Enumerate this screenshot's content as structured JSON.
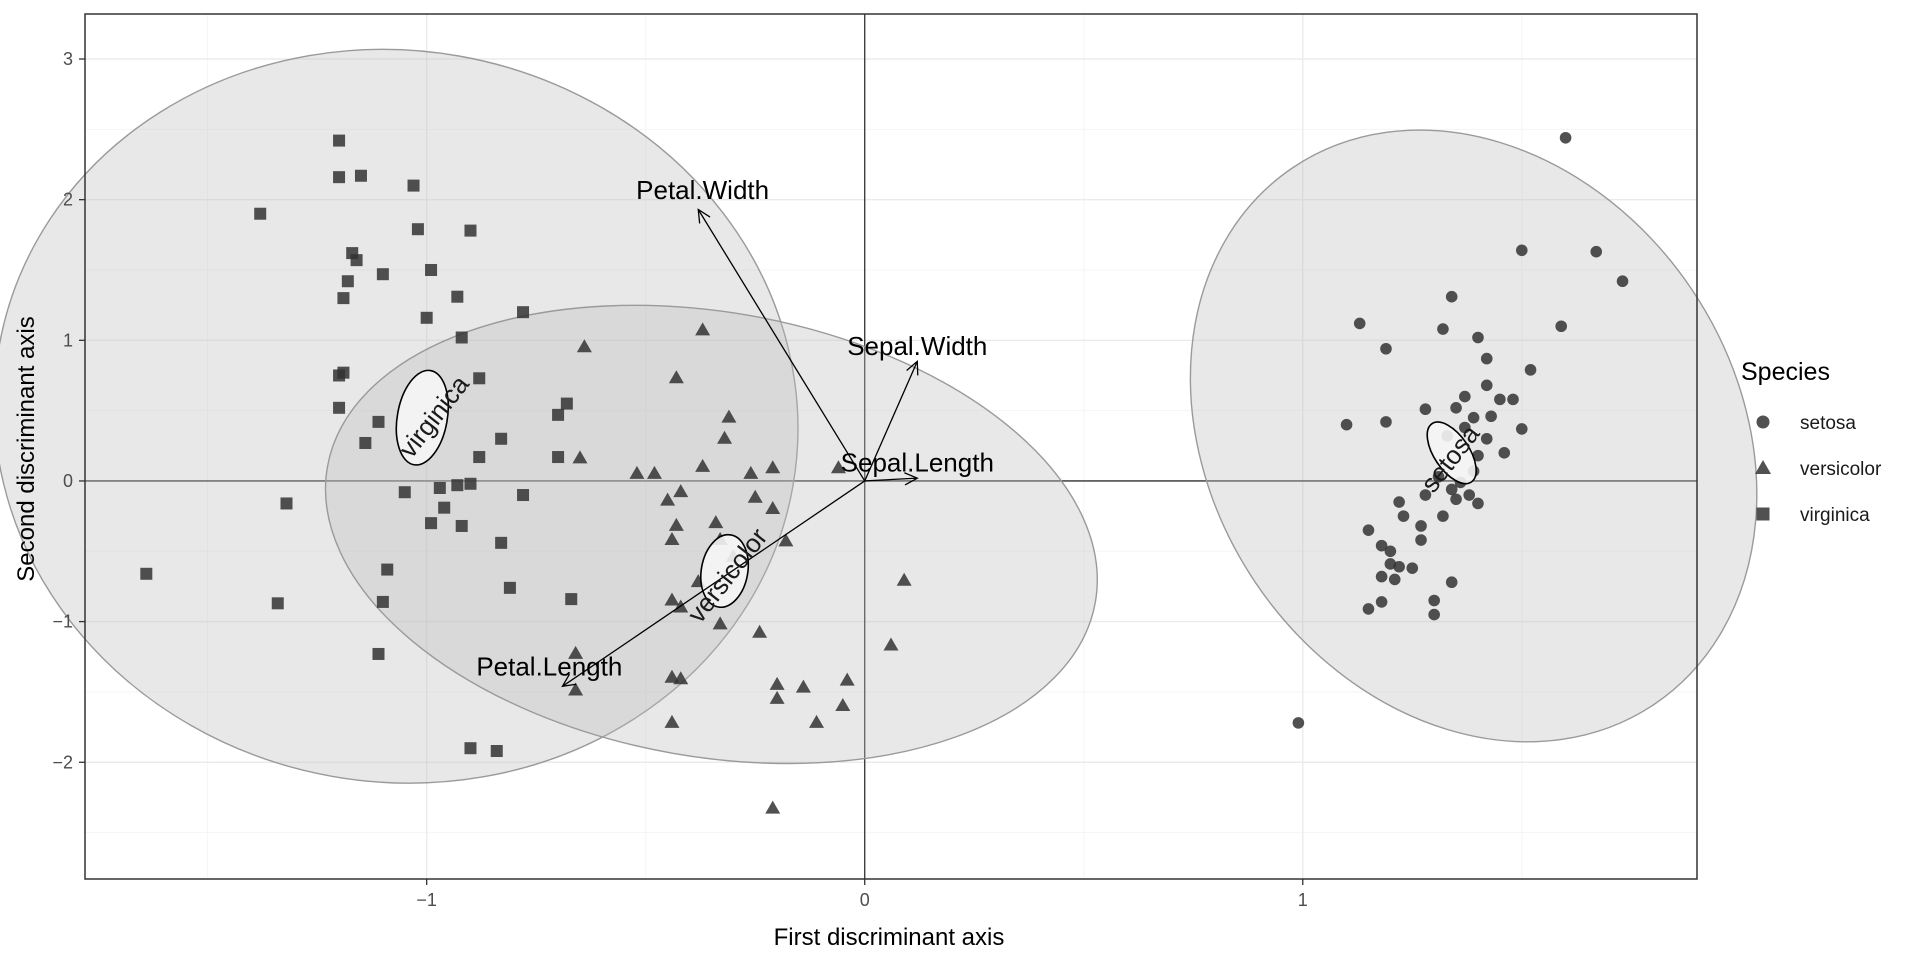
{
  "chart_data": {
    "type": "scatter",
    "xlabel": "First discriminant axis",
    "ylabel": "Second discriminant axis",
    "xlim": [
      -1.78,
      1.9
    ],
    "ylim": [
      -2.83,
      3.32
    ],
    "x_ticks": [
      -1,
      0,
      1
    ],
    "y_ticks": [
      -2,
      -1,
      0,
      1,
      2,
      3
    ],
    "grid": true,
    "legend": {
      "title": "Species",
      "position": "right"
    },
    "series": [
      {
        "name": "setosa",
        "marker": "circle",
        "points": [
          [
            1.6,
            2.44
          ],
          [
            1.5,
            1.64
          ],
          [
            1.67,
            1.63
          ],
          [
            1.73,
            1.42
          ],
          [
            1.59,
            1.1
          ],
          [
            1.13,
            1.12
          ],
          [
            1.34,
            1.31
          ],
          [
            1.32,
            1.08
          ],
          [
            1.4,
            1.02
          ],
          [
            1.19,
            0.94
          ],
          [
            1.42,
            0.87
          ],
          [
            1.52,
            0.79
          ],
          [
            1.1,
            0.4
          ],
          [
            1.19,
            0.42
          ],
          [
            1.42,
            0.68
          ],
          [
            1.37,
            0.6
          ],
          [
            1.45,
            0.58
          ],
          [
            1.48,
            0.58
          ],
          [
            1.35,
            0.52
          ],
          [
            1.28,
            0.51
          ],
          [
            1.43,
            0.46
          ],
          [
            1.39,
            0.45
          ],
          [
            1.5,
            0.37
          ],
          [
            1.37,
            0.38
          ],
          [
            1.33,
            0.32
          ],
          [
            1.42,
            0.3
          ],
          [
            1.46,
            0.2
          ],
          [
            1.4,
            0.18
          ],
          [
            1.39,
            0.07
          ],
          [
            1.31,
            0.03
          ],
          [
            1.36,
            -0.01
          ],
          [
            1.34,
            -0.06
          ],
          [
            1.38,
            -0.1
          ],
          [
            1.35,
            -0.13
          ],
          [
            1.28,
            -0.1
          ],
          [
            1.22,
            -0.15
          ],
          [
            1.4,
            -0.16
          ],
          [
            1.32,
            -0.25
          ],
          [
            1.23,
            -0.25
          ],
          [
            1.27,
            -0.32
          ],
          [
            1.15,
            -0.35
          ],
          [
            1.27,
            -0.42
          ],
          [
            1.18,
            -0.46
          ],
          [
            1.2,
            -0.5
          ],
          [
            1.2,
            -0.59
          ],
          [
            1.22,
            -0.61
          ],
          [
            1.25,
            -0.62
          ],
          [
            1.18,
            -0.68
          ],
          [
            1.21,
            -0.7
          ],
          [
            1.34,
            -0.72
          ],
          [
            1.3,
            -0.85
          ],
          [
            1.18,
            -0.86
          ],
          [
            1.15,
            -0.91
          ],
          [
            1.3,
            -0.95
          ],
          [
            0.99,
            -1.72
          ]
        ]
      },
      {
        "name": "versicolor",
        "marker": "triangle",
        "points": [
          [
            -0.37,
            1.07
          ],
          [
            -0.64,
            0.95
          ],
          [
            -0.43,
            0.73
          ],
          [
            -0.31,
            0.45
          ],
          [
            -0.32,
            0.3
          ],
          [
            -0.65,
            0.16
          ],
          [
            -0.52,
            0.05
          ],
          [
            -0.48,
            0.05
          ],
          [
            -0.37,
            0.1
          ],
          [
            -0.26,
            0.05
          ],
          [
            -0.21,
            0.09
          ],
          [
            -0.06,
            0.09
          ],
          [
            -0.42,
            -0.08
          ],
          [
            -0.45,
            -0.14
          ],
          [
            -0.25,
            -0.12
          ],
          [
            -0.21,
            -0.2
          ],
          [
            -0.34,
            -0.3
          ],
          [
            -0.43,
            -0.32
          ],
          [
            -0.33,
            -0.42
          ],
          [
            -0.44,
            -0.42
          ],
          [
            -0.18,
            -0.43
          ],
          [
            -0.3,
            -0.54
          ],
          [
            -0.38,
            -0.72
          ],
          [
            0.09,
            -0.71
          ],
          [
            -0.44,
            -0.85
          ],
          [
            -0.42,
            -0.9
          ],
          [
            -0.33,
            -1.02
          ],
          [
            -0.24,
            -1.08
          ],
          [
            0.06,
            -1.17
          ],
          [
            -0.66,
            -1.23
          ],
          [
            -0.44,
            -1.4
          ],
          [
            -0.42,
            -1.41
          ],
          [
            -0.04,
            -1.42
          ],
          [
            -0.2,
            -1.45
          ],
          [
            -0.14,
            -1.47
          ],
          [
            -0.66,
            -1.49
          ],
          [
            -0.2,
            -1.55
          ],
          [
            -0.05,
            -1.6
          ],
          [
            -0.44,
            -1.72
          ],
          [
            -0.11,
            -1.72
          ],
          [
            -0.21,
            -2.33
          ]
        ]
      },
      {
        "name": "virginica",
        "marker": "square",
        "points": [
          [
            -1.2,
            2.42
          ],
          [
            -1.2,
            2.16
          ],
          [
            -1.15,
            2.17
          ],
          [
            -1.03,
            2.1
          ],
          [
            -1.38,
            1.9
          ],
          [
            -1.02,
            1.79
          ],
          [
            -0.9,
            1.78
          ],
          [
            -1.17,
            1.62
          ],
          [
            -1.16,
            1.57
          ],
          [
            -0.99,
            1.5
          ],
          [
            -1.1,
            1.47
          ],
          [
            -1.18,
            1.42
          ],
          [
            -1.19,
            1.3
          ],
          [
            -0.93,
            1.31
          ],
          [
            -1.0,
            1.16
          ],
          [
            -0.78,
            1.2
          ],
          [
            -0.92,
            1.02
          ],
          [
            -1.2,
            0.75
          ],
          [
            -1.19,
            0.77
          ],
          [
            -0.88,
            0.73
          ],
          [
            -1.2,
            0.52
          ],
          [
            -0.68,
            0.55
          ],
          [
            -0.7,
            0.47
          ],
          [
            -1.11,
            0.42
          ],
          [
            -1.14,
            0.27
          ],
          [
            -0.83,
            0.3
          ],
          [
            -0.88,
            0.17
          ],
          [
            -0.7,
            0.17
          ],
          [
            -0.97,
            -0.05
          ],
          [
            -0.93,
            -0.03
          ],
          [
            -0.9,
            -0.02
          ],
          [
            -1.05,
            -0.08
          ],
          [
            -0.78,
            -0.1
          ],
          [
            -0.96,
            -0.19
          ],
          [
            -0.99,
            -0.3
          ],
          [
            -0.92,
            -0.32
          ],
          [
            -0.83,
            -0.44
          ],
          [
            -1.32,
            -0.16
          ],
          [
            -1.64,
            -0.66
          ],
          [
            -1.09,
            -0.63
          ],
          [
            -0.81,
            -0.76
          ],
          [
            -0.67,
            -0.84
          ],
          [
            -1.34,
            -0.87
          ],
          [
            -1.1,
            -0.86
          ],
          [
            -1.11,
            -1.23
          ],
          [
            -0.9,
            -1.9
          ],
          [
            -0.84,
            -1.92
          ]
        ]
      }
    ],
    "ellipses": [
      {
        "group": "virginica",
        "cx": -1.07,
        "cy": 0.46,
        "rx": 0.92,
        "ry": 2.6,
        "angle_deg": 10
      },
      {
        "group": "versicolor",
        "cx": -0.35,
        "cy": -0.38,
        "rx": 0.89,
        "ry": 1.58,
        "angle_deg": 10
      },
      {
        "group": "setosa",
        "cx": 1.39,
        "cy": 0.32,
        "rx": 0.6,
        "ry": 2.3,
        "angle_deg": -34
      }
    ],
    "mean_ellipses": [
      {
        "group": "virginica",
        "cx": -1.01,
        "cy": 0.45,
        "rx": 0.057,
        "ry": 0.34,
        "angle_deg": 10
      },
      {
        "group": "versicolor",
        "cx": -0.32,
        "cy": -0.64,
        "rx": 0.053,
        "ry": 0.26,
        "angle_deg": 10
      },
      {
        "group": "setosa",
        "cx": 1.34,
        "cy": 0.2,
        "rx": 0.04,
        "ry": 0.25,
        "angle_deg": -34
      }
    ],
    "group_labels": [
      {
        "text": "virginica",
        "x": -0.98,
        "y": 0.45,
        "angle_deg": -52
      },
      {
        "text": "versicolor",
        "x": -0.31,
        "y": -0.68,
        "angle_deg": -52
      },
      {
        "text": "setosa",
        "x": 1.34,
        "y": 0.15,
        "angle_deg": -52
      }
    ],
    "arrows": [
      {
        "name": "Petal.Width",
        "x": -0.38,
        "y": 1.93,
        "label_x": -0.37,
        "label_y": 2.07
      },
      {
        "name": "Sepal.Width",
        "x": 0.12,
        "y": 0.85,
        "label_x": 0.12,
        "label_y": 0.96
      },
      {
        "name": "Sepal.Length",
        "x": 0.12,
        "y": 0.02,
        "label_x": 0.12,
        "label_y": 0.13
      },
      {
        "name": "Petal.Length",
        "x": -0.69,
        "y": -1.46,
        "label_x": -0.72,
        "label_y": -1.32
      }
    ],
    "colors": {
      "point": "#333333",
      "ellipse_fill": "#bdbdbd",
      "ellipse_stroke": "#9a9a9a",
      "mean_fill": "#f5f5f5",
      "grid_major": "#ebebeb",
      "grid_minor": "#f5f5f5",
      "zero_line": "#333333"
    }
  }
}
